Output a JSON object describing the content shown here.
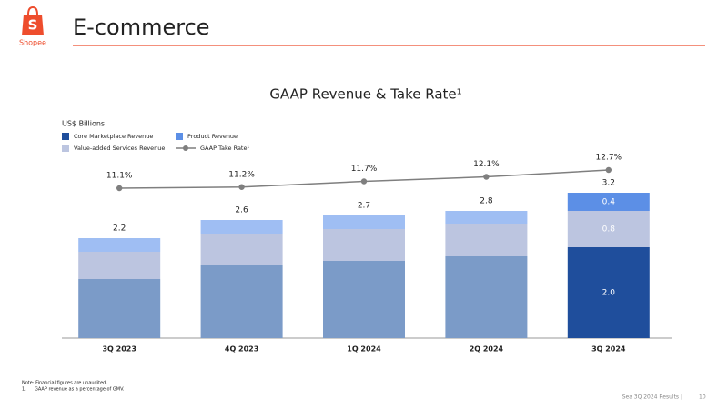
{
  "header": {
    "title": "E-commerce",
    "logo_text": "Shopee"
  },
  "chart_data": {
    "type": "bar",
    "stacked": true,
    "title": "GAAP Revenue & Take Rate¹",
    "unit_label": "US$ Billions",
    "categories": [
      "3Q 2023",
      "4Q 2023",
      "1Q 2024",
      "2Q 2024",
      "3Q 2024"
    ],
    "series": [
      {
        "name": "Core Marketplace Revenue",
        "color": "#1f4e9c",
        "faded_color": "#7b9bc8",
        "values": [
          1.3,
          1.6,
          1.7,
          1.8,
          2.0
        ],
        "value_labels": [
          null,
          null,
          null,
          null,
          "2.0"
        ]
      },
      {
        "name": "Value-added Services Revenue",
        "color": "#bcc5e0",
        "faded_color": "#bcc5e0",
        "values": [
          0.6,
          0.7,
          0.7,
          0.7,
          0.8
        ],
        "value_labels": [
          null,
          null,
          null,
          null,
          "0.8"
        ]
      },
      {
        "name": "Product Revenue",
        "color": "#5c8fe6",
        "faded_color": "#9fbef3",
        "values": [
          0.3,
          0.3,
          0.3,
          0.3,
          0.4
        ],
        "value_labels": [
          null,
          null,
          null,
          null,
          "0.4"
        ]
      }
    ],
    "totals": [
      2.2,
      2.6,
      2.7,
      2.8,
      3.2
    ],
    "line_series": {
      "name": "GAAP Take Rate¹",
      "color": "#7f7f7f",
      "values": [
        11.1,
        11.2,
        11.7,
        12.1,
        12.7
      ],
      "value_labels": [
        "11.1%",
        "11.2%",
        "11.7%",
        "12.1%",
        "12.7%"
      ]
    },
    "highlight_index": 4
  },
  "notes": [
    "Note: Financial figures are unaudited.",
    "1.",
    "GAAP revenue as a percentage of GMV."
  ],
  "footer": {
    "text": "Sea 3Q 2024 Results |",
    "page": "10"
  }
}
